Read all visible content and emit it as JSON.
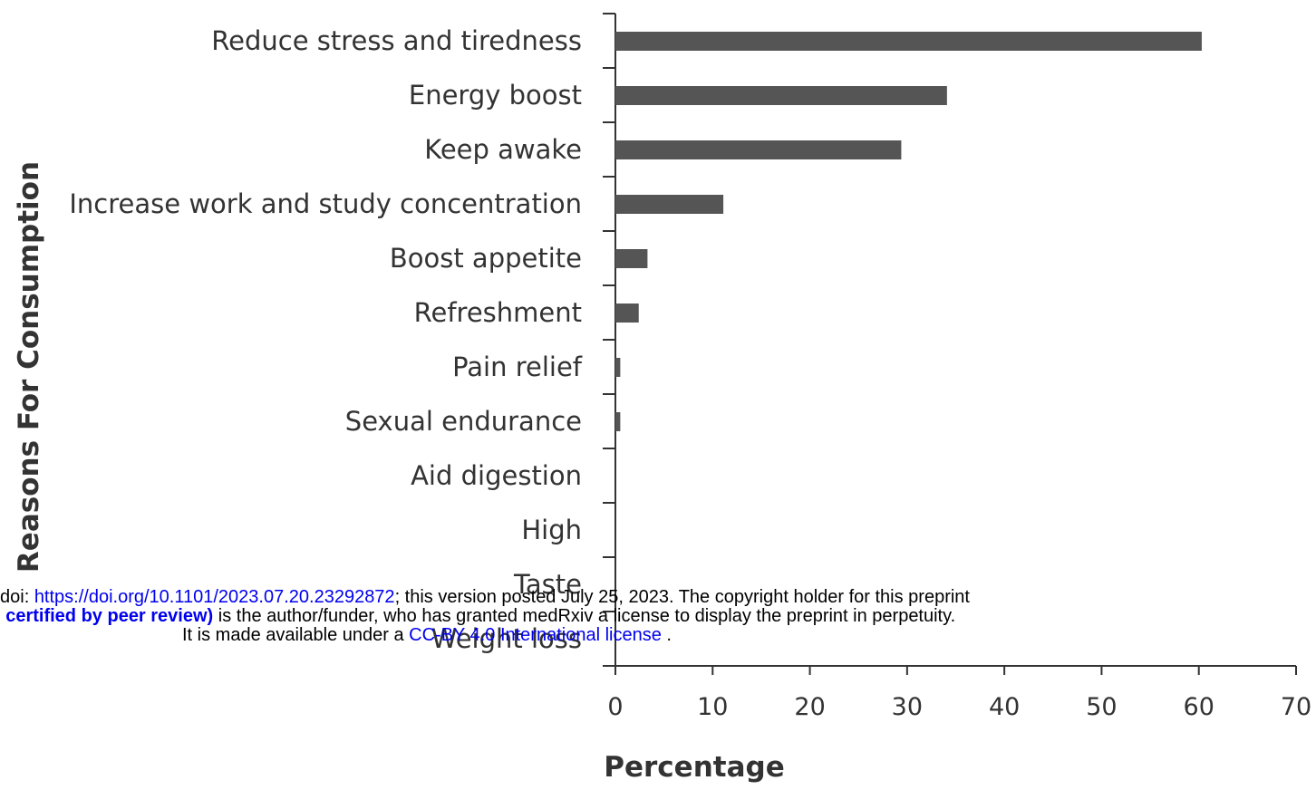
{
  "chart_data": {
    "type": "barh",
    "xlabel": "Percentage",
    "ylabel": "Reasons For Consumption",
    "categories": [
      "Reduce stress and tiredness",
      "Energy boost",
      "Keep awake",
      "Increase work and study concentration",
      "Boost appetite",
      "Refreshment",
      "Pain relief",
      "Sexual endurance",
      "Aid digestion",
      "High",
      "Taste",
      "Weight loss"
    ],
    "values": [
      60.3,
      34.1,
      29.4,
      11.1,
      3.3,
      2.4,
      0.5,
      0.5,
      0,
      0,
      0,
      0
    ],
    "color": "#555555",
    "xlim": [
      0,
      70
    ],
    "xticks": [
      0,
      10,
      20,
      30,
      40,
      50,
      60,
      70
    ]
  },
  "watermark": {
    "line1": {
      "prefix": "doi: ",
      "link": "https://doi.org/10.1101/2023.07.20.23292872",
      "suffix": "; this version posted July 25, 2023. The copyright holder for this preprint"
    },
    "line2": {
      "bold": ": certified by peer review)",
      "suffix": " is the author/funder, who has granted medRxiv a license to display the preprint in perpetuity."
    },
    "line3": {
      "prefix": "It is made available under a ",
      "link": "CC-BY 4.0 International license",
      "suffix": " ."
    }
  }
}
